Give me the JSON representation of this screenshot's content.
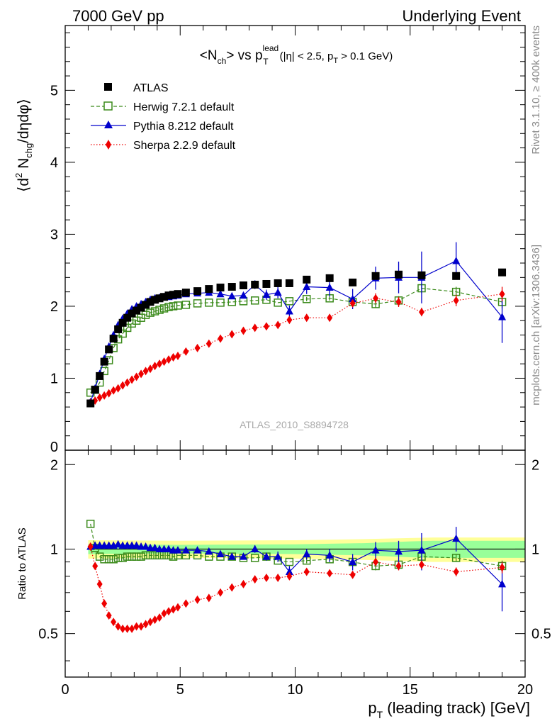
{
  "header": {
    "left": "7000 GeV pp",
    "right": "Underlying Event"
  },
  "side_labels": {
    "rivet": "Rivet 3.1.10, ≥ 400k events",
    "mcplots": "mcplots.cern.ch [arXiv:1306.3436]"
  },
  "watermark": "ATLAS_2010_S8894728",
  "colors": {
    "atlas": "#000000",
    "herwig": "#3a8a1a",
    "pythia": "#0000cc",
    "sherpa": "#ee0000",
    "band_yellow": "#ffff99",
    "band_green": "#99ff99"
  },
  "chart_data": [
    {
      "type": "scatter",
      "panel": "main",
      "title_parts": {
        "pre": "<N",
        "pre_sub": "ch",
        "mid": "> vs p",
        "mid_sup": "lead",
        "mid_sub": "T",
        "cut": "(|η| < 2.5, p",
        "cut_sub": "T",
        "cut_post": " > 0.1 GeV)"
      },
      "ylabel_parts": {
        "a": "⟨d",
        "a_sup": "2",
        "b": " N",
        "b_sub": "chg",
        "c": "/dηdφ⟩"
      },
      "xlim": [
        0,
        20
      ],
      "ylim": [
        0,
        5.9
      ],
      "yticks": [
        0,
        1,
        2,
        3,
        4,
        5
      ],
      "ytick_labels": [
        "0",
        "1",
        "2",
        "3",
        "4",
        "5"
      ],
      "legend_position": "top-left",
      "series": [
        {
          "name": "ATLAS",
          "marker": "square-filled",
          "x": [
            1.1,
            1.3,
            1.5,
            1.7,
            1.9,
            2.1,
            2.3,
            2.5,
            2.7,
            2.9,
            3.1,
            3.3,
            3.5,
            3.7,
            3.9,
            4.1,
            4.3,
            4.5,
            4.7,
            4.9,
            5.25,
            5.75,
            6.25,
            6.75,
            7.25,
            7.75,
            8.25,
            8.75,
            9.25,
            9.75,
            10.5,
            11.5,
            12.5,
            13.5,
            14.5,
            15.5,
            17,
            19
          ],
          "y": [
            0.65,
            0.84,
            1.03,
            1.23,
            1.4,
            1.55,
            1.68,
            1.77,
            1.84,
            1.9,
            1.94,
            1.98,
            2.02,
            2.06,
            2.09,
            2.11,
            2.13,
            2.15,
            2.16,
            2.17,
            2.19,
            2.21,
            2.24,
            2.26,
            2.27,
            2.29,
            2.3,
            2.31,
            2.32,
            2.32,
            2.37,
            2.39,
            2.33,
            2.42,
            2.44,
            2.43,
            2.42,
            2.47
          ]
        },
        {
          "name": "Herwig 7.2.1 default",
          "marker": "square-open",
          "line": "dashed",
          "x": [
            1.1,
            1.3,
            1.5,
            1.7,
            1.9,
            2.1,
            2.3,
            2.5,
            2.7,
            2.9,
            3.1,
            3.3,
            3.5,
            3.7,
            3.9,
            4.1,
            4.3,
            4.5,
            4.7,
            4.9,
            5.25,
            5.75,
            6.25,
            6.75,
            7.25,
            7.75,
            8.25,
            8.75,
            9.25,
            9.75,
            10.5,
            11.5,
            12.5,
            13.5,
            14.5,
            15.5,
            17,
            19
          ],
          "y": [
            0.8,
            0.84,
            0.94,
            1.1,
            1.25,
            1.42,
            1.54,
            1.62,
            1.7,
            1.76,
            1.8,
            1.84,
            1.88,
            1.91,
            1.93,
            1.95,
            1.97,
            1.99,
            2.0,
            2.01,
            2.02,
            2.04,
            2.05,
            2.05,
            2.06,
            2.07,
            2.08,
            2.09,
            2.05,
            2.07,
            2.1,
            2.11,
            2.06,
            2.03,
            2.08,
            2.25,
            2.2,
            2.06
          ],
          "yerr": [
            0,
            0,
            0,
            0,
            0,
            0,
            0,
            0,
            0,
            0,
            0,
            0,
            0,
            0,
            0,
            0,
            0,
            0,
            0,
            0,
            0,
            0,
            0,
            0,
            0,
            0,
            0,
            0,
            0,
            0,
            0.03,
            0.03,
            0.04,
            0.05,
            0.06,
            0.07,
            0.07,
            0.09
          ]
        },
        {
          "name": "Pythia 8.212 default",
          "marker": "triangle-filled",
          "line": "solid",
          "x": [
            1.1,
            1.3,
            1.5,
            1.7,
            1.9,
            2.1,
            2.3,
            2.5,
            2.7,
            2.9,
            3.1,
            3.3,
            3.5,
            3.7,
            3.9,
            4.1,
            4.3,
            4.5,
            4.7,
            4.9,
            5.25,
            5.75,
            6.25,
            6.75,
            7.25,
            7.75,
            8.25,
            8.75,
            9.25,
            9.75,
            10.5,
            11.5,
            12.5,
            13.5,
            14.5,
            15.5,
            17,
            19
          ],
          "y": [
            0.67,
            0.86,
            1.06,
            1.27,
            1.44,
            1.6,
            1.74,
            1.83,
            1.9,
            1.96,
            2.0,
            2.03,
            2.06,
            2.09,
            2.11,
            2.12,
            2.13,
            2.13,
            2.14,
            2.15,
            2.17,
            2.18,
            2.19,
            2.17,
            2.14,
            2.15,
            2.3,
            2.16,
            2.19,
            1.93,
            2.27,
            2.26,
            2.1,
            2.39,
            2.4,
            2.4,
            2.63,
            1.85
          ],
          "yerr": [
            0,
            0,
            0,
            0,
            0,
            0,
            0,
            0,
            0,
            0,
            0,
            0,
            0,
            0,
            0,
            0,
            0,
            0,
            0,
            0,
            0,
            0,
            0,
            0,
            0,
            0,
            0.06,
            0.07,
            0.08,
            0.08,
            0.1,
            0.12,
            0.14,
            0.16,
            0.22,
            0.36,
            0.26,
            0.36
          ]
        },
        {
          "name": "Sherpa 2.2.9 default",
          "marker": "diamond-filled",
          "line": "dotted",
          "x": [
            1.1,
            1.3,
            1.5,
            1.7,
            1.9,
            2.1,
            2.3,
            2.5,
            2.7,
            2.9,
            3.1,
            3.3,
            3.5,
            3.7,
            3.9,
            4.1,
            4.3,
            4.5,
            4.7,
            4.9,
            5.25,
            5.75,
            6.25,
            6.75,
            7.25,
            7.75,
            8.25,
            8.75,
            9.25,
            9.75,
            10.5,
            11.5,
            12.5,
            13.5,
            14.5,
            15.5,
            17,
            19
          ],
          "y": [
            0.66,
            0.69,
            0.73,
            0.76,
            0.79,
            0.83,
            0.86,
            0.9,
            0.94,
            0.98,
            1.02,
            1.06,
            1.1,
            1.13,
            1.17,
            1.2,
            1.23,
            1.26,
            1.29,
            1.31,
            1.37,
            1.42,
            1.48,
            1.55,
            1.61,
            1.66,
            1.7,
            1.72,
            1.74,
            1.81,
            1.84,
            1.84,
            2.04,
            2.11,
            2.06,
            1.92,
            2.08,
            2.17
          ],
          "yerr": [
            0,
            0,
            0,
            0,
            0,
            0,
            0,
            0,
            0,
            0,
            0,
            0,
            0,
            0,
            0,
            0,
            0,
            0,
            0,
            0,
            0,
            0,
            0,
            0,
            0,
            0,
            0,
            0,
            0,
            0,
            0.03,
            0.03,
            0.05,
            0.07,
            0.07,
            0.06,
            0.08,
            0.1
          ]
        }
      ]
    },
    {
      "type": "scatter",
      "panel": "ratio",
      "ylabel": "Ratio to ATLAS",
      "xlabel_parts": {
        "pre": "p",
        "pre_sub": "T",
        "post": " (leading track) [GeV]"
      },
      "xlim": [
        0,
        20
      ],
      "xticks": [
        0,
        5,
        10,
        15,
        20
      ],
      "xtick_labels": [
        "0",
        "5",
        "10",
        "15",
        "20"
      ],
      "ylim": [
        0.35,
        2.25
      ],
      "yticks": [
        0.5,
        1,
        2
      ],
      "ytick_labels": [
        "0.5",
        "1",
        "2"
      ],
      "bands": {
        "x": [
          1.0,
          5.0,
          10.0,
          13.0,
          15.0,
          16.0,
          20.0
        ],
        "yellow_half": [
          0.075,
          0.07,
          0.075,
          0.085,
          0.095,
          0.1,
          0.1
        ],
        "green_half": [
          0.04,
          0.035,
          0.04,
          0.05,
          0.065,
          0.07,
          0.07
        ]
      },
      "series": [
        {
          "name": "Herwig 7.2.1 default",
          "x": [
            1.1,
            1.3,
            1.5,
            1.7,
            1.9,
            2.1,
            2.3,
            2.5,
            2.7,
            2.9,
            3.1,
            3.3,
            3.5,
            3.7,
            3.9,
            4.1,
            4.3,
            4.5,
            4.7,
            4.9,
            5.25,
            5.75,
            6.25,
            6.75,
            7.25,
            7.75,
            8.25,
            8.75,
            9.25,
            9.75,
            10.5,
            11.5,
            12.5,
            13.5,
            14.5,
            15.5,
            17,
            19
          ],
          "y": [
            1.23,
            1.01,
            0.94,
            0.92,
            0.92,
            0.92,
            0.93,
            0.93,
            0.94,
            0.94,
            0.94,
            0.94,
            0.95,
            0.95,
            0.95,
            0.95,
            0.95,
            0.95,
            0.94,
            0.95,
            0.95,
            0.95,
            0.94,
            0.94,
            0.94,
            0.93,
            0.93,
            0.94,
            0.91,
            0.9,
            0.91,
            0.92,
            0.9,
            0.87,
            0.88,
            0.94,
            0.93,
            0.87
          ],
          "yerr": [
            0,
            0,
            0,
            0,
            0,
            0,
            0,
            0,
            0,
            0,
            0,
            0,
            0,
            0,
            0,
            0,
            0,
            0,
            0,
            0,
            0,
            0,
            0,
            0,
            0,
            0,
            0,
            0,
            0,
            0,
            0.02,
            0.02,
            0.02,
            0.03,
            0.03,
            0.03,
            0.03,
            0.04
          ]
        },
        {
          "name": "Pythia 8.212 default",
          "x": [
            1.1,
            1.3,
            1.5,
            1.7,
            1.9,
            2.1,
            2.3,
            2.5,
            2.7,
            2.9,
            3.1,
            3.3,
            3.5,
            3.7,
            3.9,
            4.1,
            4.3,
            4.5,
            4.7,
            4.9,
            5.25,
            5.75,
            6.25,
            6.75,
            7.25,
            7.75,
            8.25,
            8.75,
            9.25,
            9.75,
            10.5,
            11.5,
            12.5,
            13.5,
            14.5,
            15.5,
            17,
            19
          ],
          "y": [
            1.02,
            1.03,
            1.03,
            1.03,
            1.03,
            1.03,
            1.04,
            1.03,
            1.03,
            1.03,
            1.03,
            1.02,
            1.02,
            1.01,
            1.01,
            1.0,
            1.0,
            1.0,
            0.99,
            0.99,
            0.99,
            0.99,
            0.98,
            0.96,
            0.94,
            0.94,
            1.0,
            0.94,
            0.94,
            0.83,
            0.96,
            0.95,
            0.9,
            0.99,
            0.98,
            0.99,
            1.09,
            0.75
          ],
          "yerr": [
            0,
            0,
            0,
            0,
            0,
            0,
            0,
            0,
            0,
            0,
            0,
            0,
            0,
            0,
            0,
            0,
            0,
            0,
            0,
            0,
            0,
            0,
            0,
            0,
            0,
            0,
            0.03,
            0.03,
            0.04,
            0.04,
            0.04,
            0.05,
            0.06,
            0.07,
            0.09,
            0.15,
            0.11,
            0.15
          ]
        },
        {
          "name": "Sherpa 2.2.9 default",
          "x": [
            1.1,
            1.3,
            1.5,
            1.7,
            1.9,
            2.1,
            2.3,
            2.5,
            2.7,
            2.9,
            3.1,
            3.3,
            3.5,
            3.7,
            3.9,
            4.1,
            4.3,
            4.5,
            4.7,
            4.9,
            5.25,
            5.75,
            6.25,
            6.75,
            7.25,
            7.75,
            8.25,
            8.75,
            9.25,
            9.75,
            10.5,
            11.5,
            12.5,
            13.5,
            14.5,
            15.5,
            17,
            19
          ],
          "y": [
            1.02,
            0.87,
            0.75,
            0.64,
            0.58,
            0.55,
            0.53,
            0.52,
            0.52,
            0.52,
            0.53,
            0.53,
            0.54,
            0.55,
            0.56,
            0.57,
            0.59,
            0.6,
            0.61,
            0.62,
            0.64,
            0.66,
            0.67,
            0.7,
            0.73,
            0.75,
            0.78,
            0.79,
            0.79,
            0.8,
            0.83,
            0.82,
            0.81,
            0.9,
            0.87,
            0.88,
            0.83,
            0.86
          ],
          "yerr": [
            0,
            0,
            0,
            0,
            0,
            0,
            0,
            0,
            0,
            0,
            0,
            0,
            0,
            0,
            0,
            0,
            0,
            0,
            0,
            0,
            0,
            0,
            0,
            0,
            0,
            0,
            0,
            0,
            0,
            0,
            0.02,
            0.02,
            0.02,
            0.03,
            0.03,
            0.03,
            0.03,
            0.04
          ]
        }
      ]
    }
  ]
}
